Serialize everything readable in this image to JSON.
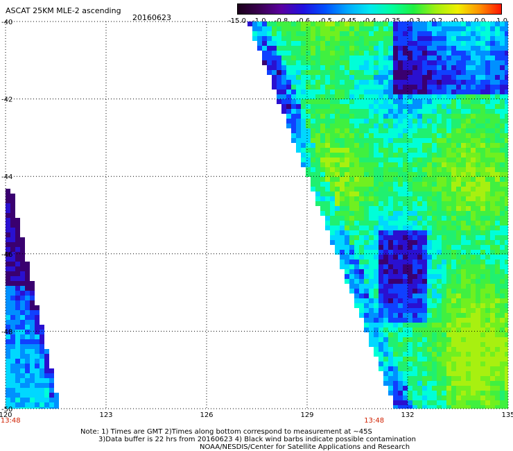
{
  "header": {
    "title": "ASCAT 25KM MLE-2 ascending",
    "date": "20160623"
  },
  "colorbar": {
    "tick_labels": [
      "-15.0",
      "-1.0",
      "-0.8",
      "-0.6",
      "-0.5",
      "-0.45",
      "-0.4",
      "-0.35",
      "-0.3",
      "-0.2",
      "-0.1",
      "0.0",
      "1.0"
    ],
    "colors": [
      "#1a0018",
      "#3a0050",
      "#5a00a0",
      "#2010e0",
      "#0050ff",
      "#00a8ff",
      "#00e8f0",
      "#00ffa0",
      "#20f040",
      "#a0f010",
      "#f0f000",
      "#ff9000",
      "#ff1000"
    ]
  },
  "map": {
    "lat_labels": [
      "-40",
      "-42",
      "-44",
      "-46",
      "-48",
      "-50"
    ],
    "lat_values": [
      -40,
      -42,
      -44,
      -46,
      -48,
      -50
    ],
    "lon_labels": [
      "120",
      "123",
      "126",
      "129",
      "132",
      "135"
    ],
    "lon_values": [
      120,
      123,
      126,
      129,
      132,
      135
    ],
    "lon_range": [
      120,
      135
    ],
    "lat_range": [
      -40,
      -50
    ],
    "time_labels": [
      {
        "text": "13:48",
        "lon": 120.15
      },
      {
        "text": "13:48",
        "lon": 131.0
      }
    ],
    "grid": "dotted"
  },
  "notes": {
    "line1": "Note: 1) Times are GMT 2)Times along bottom correspond to measurement at ~45S",
    "line2": "3)Data buffer is 22 hrs from 20160623 4) Black wind barbs indicate possible contamination",
    "line3": "NOAA/NESDIS/Center for Satellite Applications and Research"
  }
}
